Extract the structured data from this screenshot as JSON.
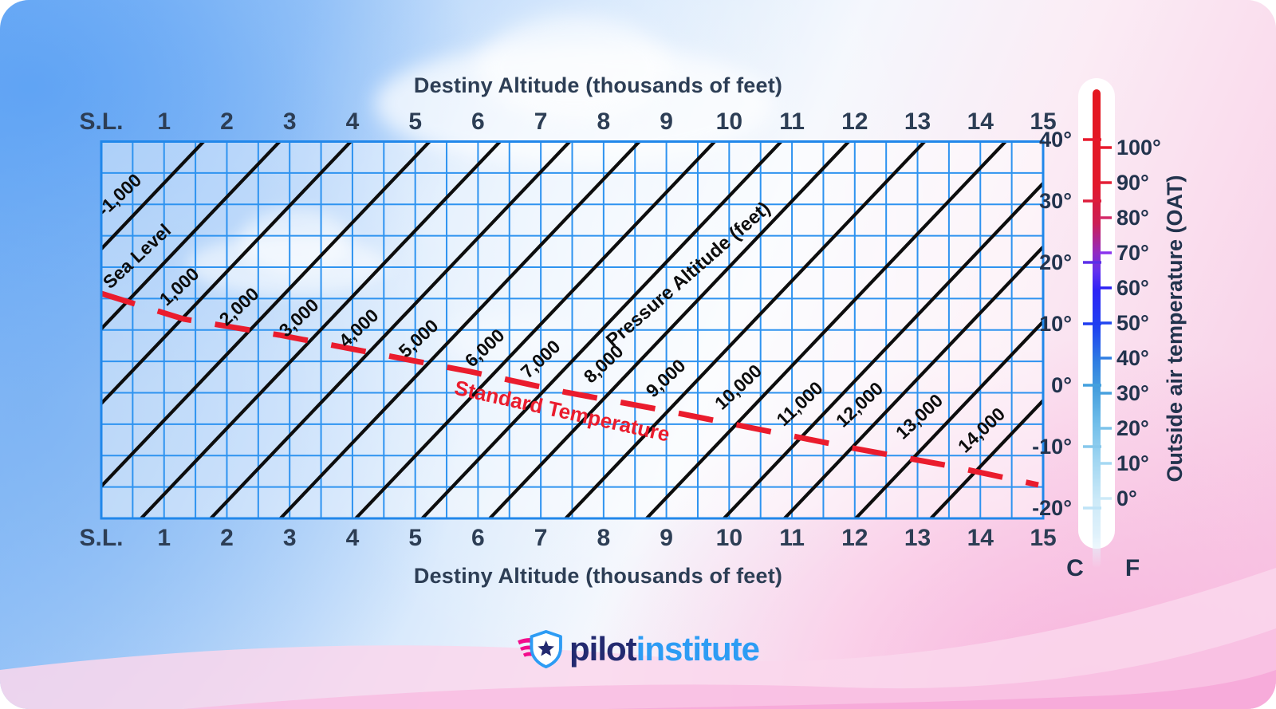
{
  "header": {
    "title_top": "Destiny Altitude (thousands of feet)",
    "title_bottom": "Destiny Altitude (thousands of feet)"
  },
  "axis": {
    "x_ticks": [
      "S.L.",
      "1",
      "2",
      "3",
      "4",
      "5",
      "6",
      "7",
      "8",
      "9",
      "10",
      "11",
      "12",
      "13",
      "14",
      "15"
    ],
    "pressure_axis_label": "Pressure Altitude (feet)"
  },
  "pressure_lines": [
    "-1,000",
    "Sea Level",
    "1,000",
    "2,000",
    "3,000",
    "4,000",
    "5,000",
    "6,000",
    "7,000",
    "8,000",
    "9,000",
    "10,000",
    "11,000",
    "12,000",
    "13,000",
    "14,000"
  ],
  "standard_temperature": {
    "label": "Standard Temperature"
  },
  "thermometer": {
    "celsius_ticks": [
      "40°",
      "30°",
      "20°",
      "10°",
      "0°",
      "-10°",
      "-20°"
    ],
    "fahrenheit_ticks": [
      "100°",
      "90°",
      "80°",
      "70°",
      "60°",
      "50°",
      "40°",
      "30°",
      "20°",
      "10°",
      "0°"
    ],
    "celsius_unit": "C",
    "fahrenheit_unit": "F",
    "axis_label": "Outside air temperature (OAT)"
  },
  "logo": {
    "part1": "pilot",
    "part2": "institute"
  },
  "colors": {
    "grid_blue": "#2e93f0",
    "diagonal_black": "#0d0d0d",
    "standard_temp_red": "#ea1c2d",
    "text_dark": "#2d3e55",
    "logo_navy": "#232a70",
    "logo_blue": "#2d9cf4",
    "wing_pink": "#f20d8c"
  },
  "chart_data": {
    "type": "line",
    "title": "Destiny Altitude (thousands of feet)",
    "xlabel": "Destiny Altitude (thousands of feet)",
    "ylabel": "Outside air temperature (OAT)",
    "x_axis": {
      "tick_labels": [
        "S.L.",
        "1",
        "2",
        "3",
        "4",
        "5",
        "6",
        "7",
        "8",
        "9",
        "10",
        "11",
        "12",
        "13",
        "14",
        "15"
      ],
      "units": "thousands of feet",
      "range_thousands_ft": [
        0,
        15
      ],
      "minor_gridlines_per_major": 2
    },
    "y_axis_celsius": {
      "tick_values": [
        40,
        30,
        20,
        10,
        0,
        -10,
        -20
      ]
    },
    "y_axis_fahrenheit": {
      "tick_values": [
        100,
        90,
        80,
        70,
        60,
        50,
        40,
        30,
        20,
        10,
        0
      ]
    },
    "diagonal_series": {
      "name": "Pressure Altitude (feet)",
      "style": "solid black diagonal lines, lower-left to upper-right",
      "levels_feet": [
        -1000,
        0,
        1000,
        2000,
        3000,
        4000,
        5000,
        6000,
        7000,
        8000,
        9000,
        10000,
        11000,
        12000,
        13000,
        14000
      ],
      "level_labels": [
        "-1,000",
        "Sea Level",
        "1,000",
        "2,000",
        "3,000",
        "4,000",
        "5,000",
        "6,000",
        "7,000",
        "8,000",
        "9,000",
        "10,000",
        "11,000",
        "12,000",
        "13,000",
        "14,000"
      ]
    },
    "reference_series": {
      "name": "Standard Temperature",
      "style": "red dashed curve",
      "points_density_alt_kft_vs_oat_c": [
        [
          0,
          15.8
        ],
        [
          2,
          11.5
        ],
        [
          4,
          8.0
        ],
        [
          6,
          3.5
        ],
        [
          8,
          -1.2
        ],
        [
          10,
          -6.2
        ],
        [
          12,
          -10.5
        ],
        [
          15,
          -14.5
        ]
      ]
    },
    "grid": true,
    "legend_position": "none"
  }
}
